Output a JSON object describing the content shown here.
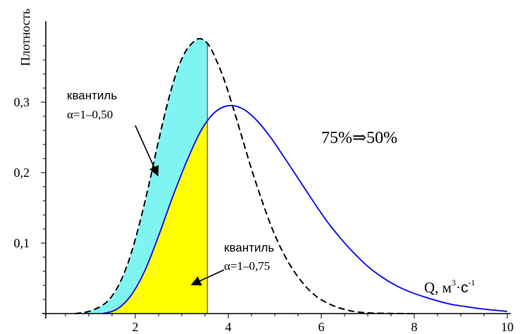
{
  "chart_data": {
    "type": "area",
    "ylabel": "Плотность",
    "xlabel": {
      "main": "Q, м",
      "sup1": "3",
      "dot": "·",
      "unit": "с",
      "sup2": "-1"
    },
    "xlim": [
      0,
      10
    ],
    "ylim": [
      0,
      0.4
    ],
    "x_ticks": [
      {
        "value": 2,
        "label": "2"
      },
      {
        "value": 4,
        "label": "4"
      },
      {
        "value": 6,
        "label": "6"
      },
      {
        "value": 8,
        "label": "8"
      },
      {
        "value": 10,
        "label": "10"
      }
    ],
    "y_ticks": [
      {
        "value": 0.1,
        "label": "0,1"
      },
      {
        "value": 0.2,
        "label": "0,2"
      },
      {
        "value": 0.3,
        "label": "0,3"
      }
    ],
    "quantile_x": 3.55,
    "series": [
      {
        "style": "dashed",
        "color": "#000000",
        "fill_to_quantile": "#80f4f2",
        "x": [
          0.7,
          1.0,
          1.3,
          1.5,
          1.7,
          1.9,
          2.1,
          2.3,
          2.5,
          2.7,
          2.9,
          3.1,
          3.3,
          3.4,
          3.5,
          3.6,
          3.7,
          3.9,
          4.1,
          4.3,
          4.5,
          4.7,
          4.9,
          5.1,
          5.3,
          5.5,
          5.7,
          5.9,
          6.1,
          6.3,
          6.5,
          6.7,
          7.0,
          7.3,
          7.6,
          8.0
        ],
        "y": [
          0.0,
          0.003,
          0.012,
          0.025,
          0.048,
          0.083,
          0.13,
          0.185,
          0.245,
          0.3,
          0.345,
          0.374,
          0.388,
          0.39,
          0.387,
          0.379,
          0.366,
          0.334,
          0.293,
          0.249,
          0.205,
          0.165,
          0.128,
          0.097,
          0.072,
          0.052,
          0.036,
          0.024,
          0.016,
          0.01,
          0.006,
          0.003,
          0.001,
          0.0004,
          0.0001,
          0.0
        ]
      },
      {
        "style": "solid",
        "color": "#1a1ae6",
        "fill_to_quantile": "#ffff00",
        "x": [
          1.3,
          1.6,
          1.9,
          2.2,
          2.5,
          2.8,
          3.1,
          3.4,
          3.7,
          4.0,
          4.3,
          4.6,
          4.9,
          5.2,
          5.5,
          5.8,
          6.1,
          6.4,
          6.7,
          7.0,
          7.3,
          7.6,
          7.9,
          8.2,
          8.5,
          8.8,
          9.1,
          9.4,
          9.7,
          10.0
        ],
        "y": [
          0.0,
          0.006,
          0.025,
          0.06,
          0.11,
          0.165,
          0.215,
          0.258,
          0.285,
          0.295,
          0.291,
          0.275,
          0.251,
          0.222,
          0.192,
          0.162,
          0.133,
          0.108,
          0.086,
          0.067,
          0.052,
          0.04,
          0.031,
          0.024,
          0.018,
          0.013,
          0.01,
          0.007,
          0.005,
          0.003
        ]
      }
    ],
    "annotations": {
      "upper_word": "квантиль",
      "upper_alpha": "α=1–0,50",
      "lower_word": "квантиль",
      "lower_alpha": "α=1–0,75",
      "shift": "75%⇒50%"
    }
  }
}
